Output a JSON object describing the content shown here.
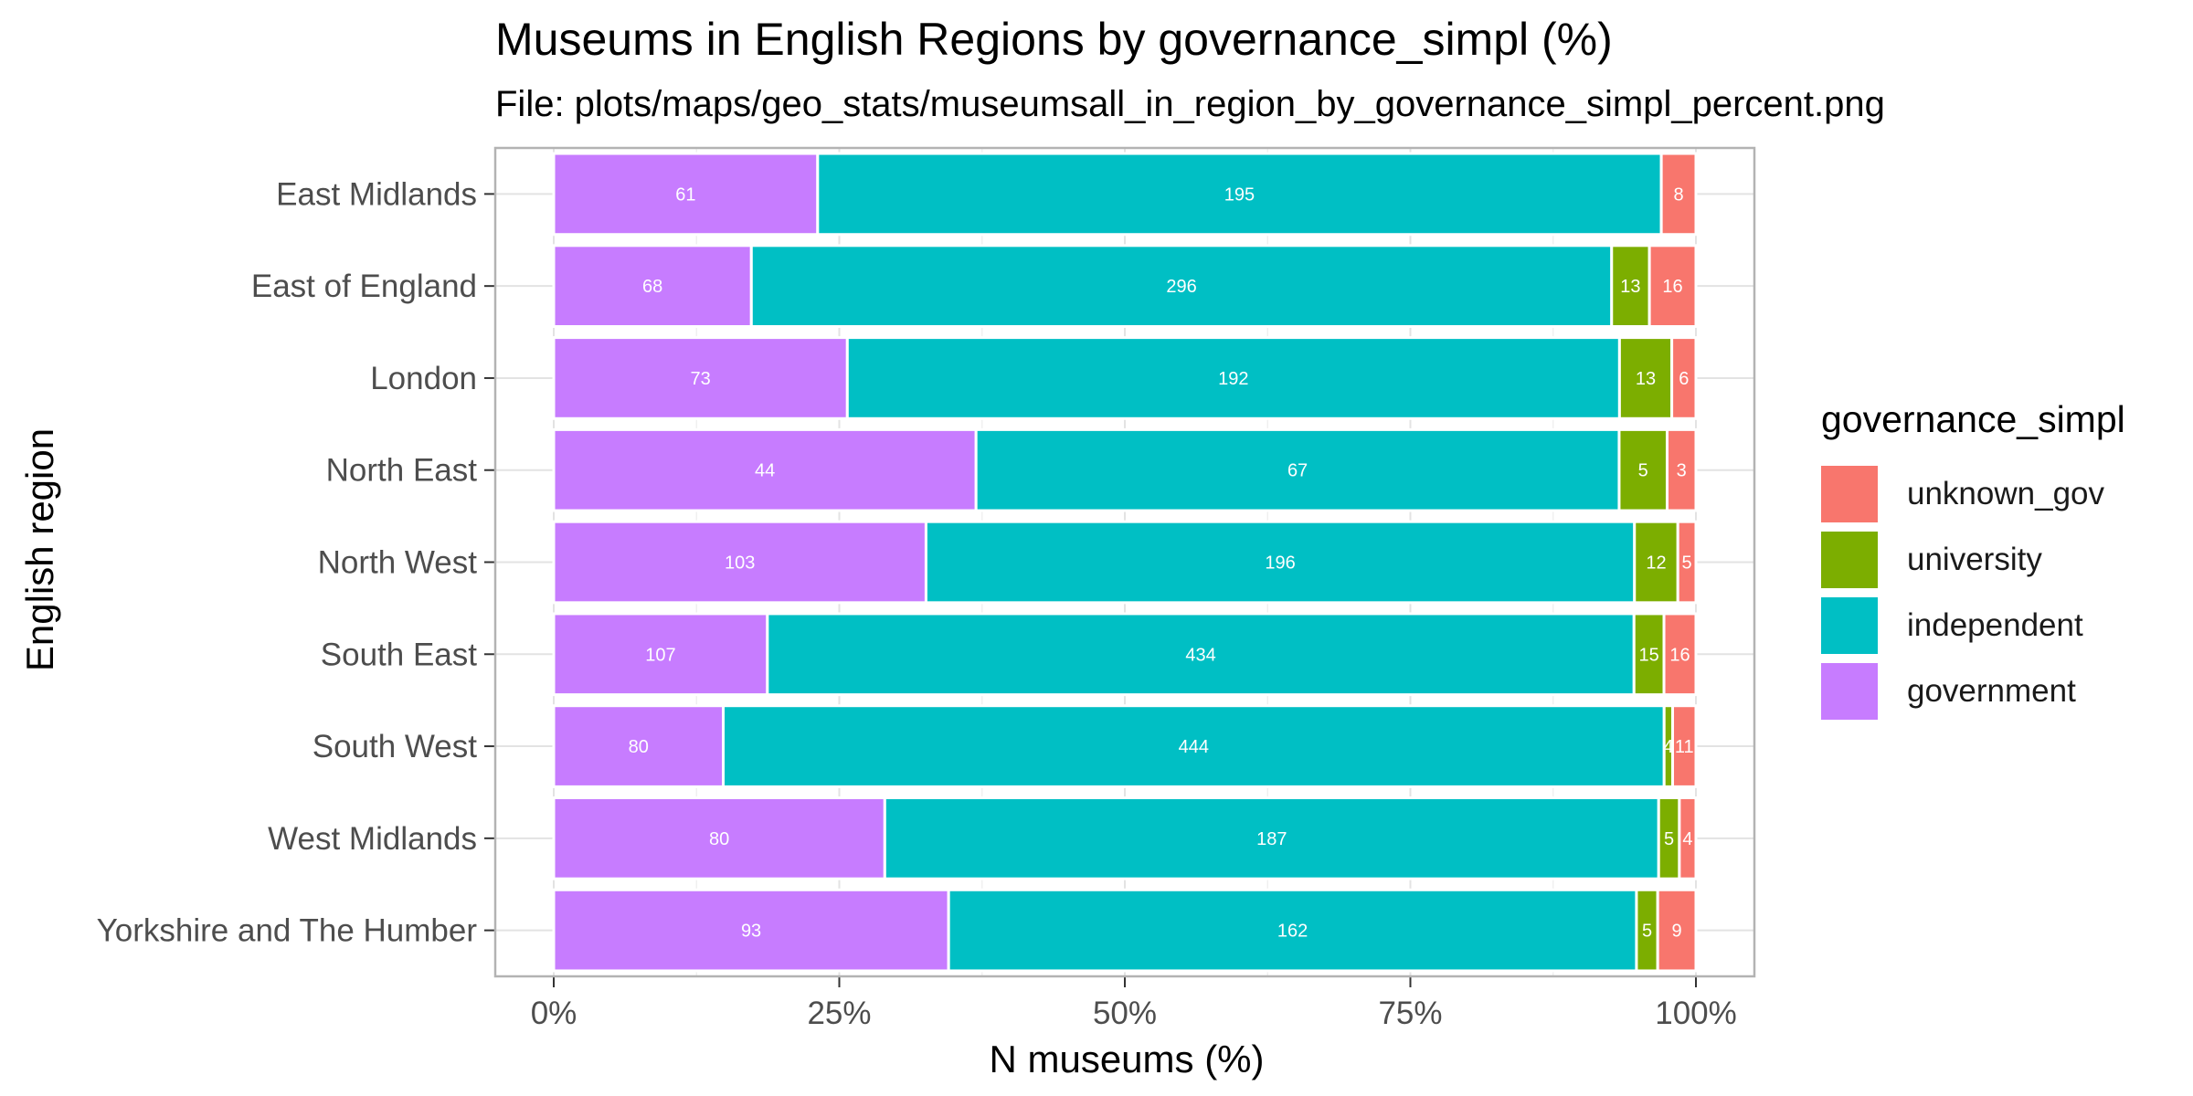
{
  "chart_data": {
    "type": "bar",
    "orientation": "horizontal",
    "stacking": "percent",
    "title": "Museums in English Regions by governance_simpl (%)",
    "subtitle": "File: plots/maps/geo_stats/museumsall_in_region_by_governance_simpl_percent.png",
    "xlabel": "N museums (%)",
    "ylabel": "English region",
    "xlim": [
      0,
      100
    ],
    "x_ticks": [
      "0%",
      "25%",
      "50%",
      "75%",
      "100%"
    ],
    "grid": true,
    "legend_position": "right",
    "legend_title": "governance_simpl",
    "categories": [
      "East Midlands",
      "East of England",
      "London",
      "North East",
      "North West",
      "South East",
      "South West",
      "West Midlands",
      "Yorkshire and The Humber"
    ],
    "series": [
      {
        "name": "government",
        "color": "#C77CFF",
        "values": [
          61,
          68,
          73,
          44,
          103,
          107,
          80,
          80,
          93
        ]
      },
      {
        "name": "independent",
        "color": "#00BFC4",
        "values": [
          195,
          296,
          192,
          67,
          196,
          434,
          444,
          187,
          162
        ]
      },
      {
        "name": "university",
        "color": "#7CAE00",
        "values": [
          0,
          13,
          13,
          5,
          12,
          15,
          4,
          5,
          5
        ]
      },
      {
        "name": "unknown_gov",
        "color": "#F8766D",
        "values": [
          8,
          16,
          6,
          3,
          5,
          16,
          11,
          4,
          9
        ]
      }
    ],
    "legend_order": [
      "unknown_gov",
      "university",
      "independent",
      "government"
    ]
  }
}
